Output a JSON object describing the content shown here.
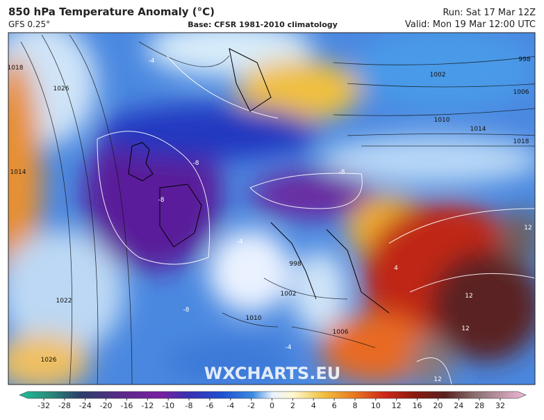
{
  "header": {
    "title": "850 hPa Temperature Anomaly (°C)",
    "model": "GFS 0.25°",
    "base": "Base: CFSR 1981-2010 climatology",
    "run": "Run: Sat 17 Mar 12Z",
    "valid": "Valid: Mon 19 Mar 12:00 UTC"
  },
  "map": {
    "watermark": "WXCHARTS.EU",
    "isobar_labels": [
      1018,
      1026,
      1014,
      1022,
      1026,
      998,
      1002,
      1006,
      1010,
      1014,
      1018,
      1002,
      1006,
      1010,
      998
    ],
    "anomaly_labels": [
      -4,
      -8,
      -8,
      -8,
      -4,
      -8,
      -4,
      4,
      12,
      12,
      12,
      12
    ]
  },
  "colorbar": {
    "ticks": [
      -32,
      -28,
      -24,
      -20,
      -16,
      -12,
      -10,
      -8,
      -6,
      -4,
      -2,
      0,
      2,
      4,
      6,
      8,
      10,
      12,
      16,
      20,
      24,
      28,
      32
    ]
  }
}
